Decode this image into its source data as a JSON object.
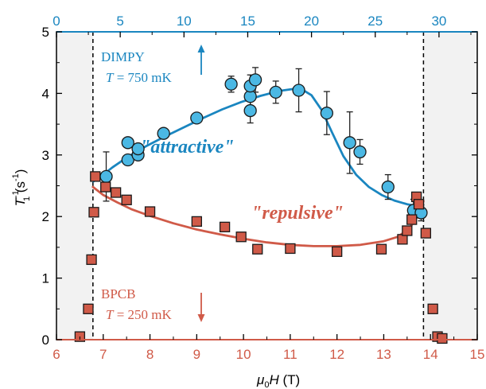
{
  "chart_data": {
    "type": "scatter",
    "xlabel_parts": {
      "mu": "μ",
      "sub": "0",
      "rest": "H (T)"
    },
    "ylabel_parts": {
      "T": "T",
      "sup": "-1",
      "sub": "1",
      "unit": " (s",
      "unit_sup": "-1",
      "close": ")"
    },
    "bottom_axis": {
      "range": [
        6,
        15
      ],
      "ticks": [
        6,
        7,
        8,
        9,
        10,
        11,
        12,
        13,
        14,
        15
      ],
      "color": "#d05a48"
    },
    "top_axis": {
      "range": [
        0,
        33
      ],
      "ticks": [
        0,
        5,
        10,
        15,
        20,
        25,
        30
      ],
      "color": "#1a86c0"
    },
    "y_axis": {
      "range": [
        0,
        5
      ],
      "ticks": [
        0,
        1,
        2,
        3,
        4,
        5
      ]
    },
    "shaded_regions_bottom_x": [
      [
        6,
        6.78
      ],
      [
        13.85,
        15
      ]
    ],
    "dashed_lines_bottom_x": [
      6.78,
      13.85
    ],
    "series": [
      {
        "name": "DIMPY",
        "axis": "top",
        "marker": "circle",
        "color": "#4bb8e4",
        "x": [
          3.9,
          5.6,
          5.6,
          6.4,
          6.4,
          8.4,
          11.0,
          13.7,
          15.2,
          15.2,
          15.2,
          15.6,
          17.2,
          19.0,
          21.2,
          23.0,
          23.8,
          26.0,
          28.0,
          28.6
        ],
        "y": [
          2.65,
          2.92,
          3.2,
          3.0,
          3.1,
          3.35,
          3.6,
          4.15,
          3.72,
          3.95,
          4.12,
          4.22,
          4.02,
          4.05,
          3.68,
          3.2,
          3.05,
          2.48,
          2.1,
          2.06
        ],
        "err": [
          0.4,
          0,
          0,
          0,
          0,
          0,
          0,
          0.13,
          0.2,
          0.2,
          0.18,
          0.2,
          0.18,
          0.35,
          0.35,
          0.5,
          0.2,
          0.2,
          0.18,
          0.13
        ]
      },
      {
        "name": "BPCB",
        "axis": "bottom",
        "marker": "square",
        "color": "#d05a48",
        "x": [
          6.5,
          6.68,
          6.75,
          6.8,
          6.83,
          7.05,
          7.27,
          7.5,
          8.0,
          9.0,
          9.6,
          9.95,
          10.3,
          11.0,
          12.0,
          12.95,
          13.4,
          13.5,
          13.6,
          13.7,
          13.75,
          13.9,
          14.05,
          14.15,
          14.25
        ],
        "y": [
          0.05,
          0.5,
          1.3,
          2.07,
          2.65,
          2.48,
          2.39,
          2.27,
          2.08,
          1.92,
          1.83,
          1.67,
          1.47,
          1.48,
          1.43,
          1.47,
          1.63,
          1.77,
          1.95,
          2.32,
          2.2,
          1.73,
          0.5,
          0.05,
          0.02
        ]
      }
    ],
    "fit_curves": [
      {
        "axis": "top",
        "color": "#1a86c0",
        "x": [
          2.9,
          3.6,
          4.4,
          5.6,
          7.0,
          8.5,
          10.0,
          11.5,
          13.0,
          14.5,
          16.0,
          17.5,
          18.5,
          19.3,
          20.0,
          20.8,
          21.6,
          22.5,
          23.5,
          24.5,
          25.5,
          26.5,
          27.5,
          28.5
        ],
        "y": [
          2.57,
          2.67,
          2.8,
          2.97,
          3.14,
          3.3,
          3.45,
          3.6,
          3.74,
          3.86,
          3.96,
          4.04,
          4.07,
          4.06,
          3.97,
          3.73,
          3.37,
          2.98,
          2.68,
          2.48,
          2.35,
          2.26,
          2.2,
          2.16
        ]
      },
      {
        "axis": "bottom",
        "color": "#d05a48",
        "x": [
          6.78,
          7.0,
          7.3,
          7.6,
          8.0,
          8.5,
          9.0,
          9.5,
          10.0,
          10.5,
          11.0,
          11.5,
          12.0,
          12.5,
          13.0,
          13.3,
          13.55,
          13.75,
          13.85
        ],
        "y": [
          2.48,
          2.35,
          2.23,
          2.12,
          2.01,
          1.89,
          1.79,
          1.71,
          1.64,
          1.58,
          1.54,
          1.52,
          1.52,
          1.54,
          1.6,
          1.67,
          1.81,
          2.03,
          2.25
        ]
      }
    ],
    "annotations": {
      "dimpy_label": "DIMPY",
      "dimpy_temp_T": "T",
      "dimpy_temp_value": " = 750 mK",
      "bpcb_label": "BPCB",
      "bpcb_temp_T": "T",
      "bpcb_temp_value": " = 250 mK",
      "attractive": "\"attractive\"",
      "repulsive": "\"repulsive\""
    }
  }
}
